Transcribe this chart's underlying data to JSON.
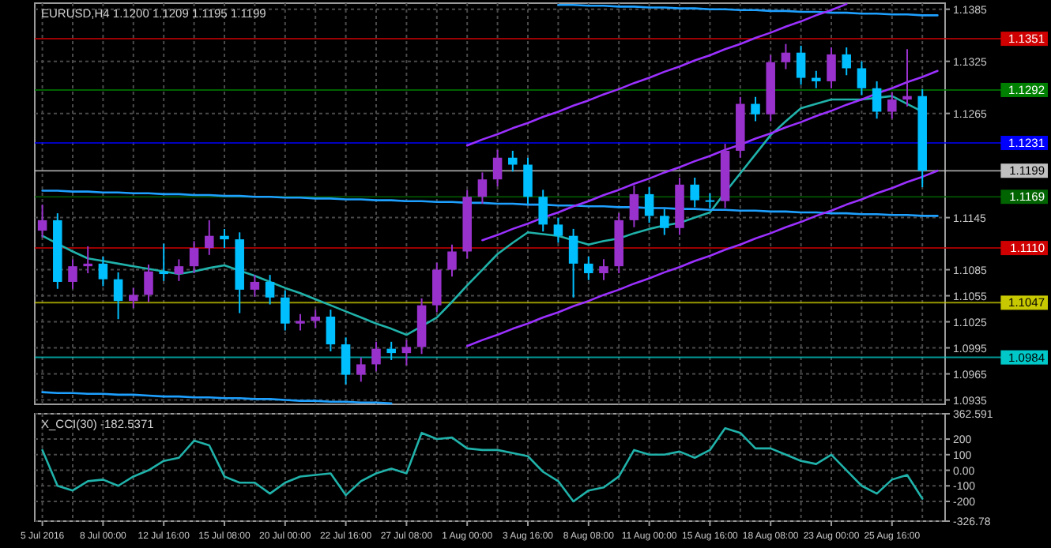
{
  "chart_data": [
    {
      "type": "candlestick",
      "title": "EURUSD,H4  1.1200 1.1209 1.1195 1.1199",
      "categories": [
        null,
        null,
        null,
        null,
        null,
        null,
        null,
        null,
        null,
        null,
        null,
        null,
        null,
        null,
        null,
        null,
        null,
        null,
        null,
        null,
        null,
        null,
        null,
        null,
        null,
        null,
        null,
        null,
        null,
        null,
        null,
        null,
        null,
        null,
        null,
        null,
        null,
        null,
        null,
        null,
        null,
        null,
        null,
        null,
        null,
        null,
        null,
        null,
        null,
        null,
        null,
        null,
        null,
        null,
        null,
        null,
        null,
        null,
        null,
        null
      ],
      "ohlc": [
        [
          1.113,
          1.116,
          1.1122,
          1.1142
        ],
        [
          1.1142,
          1.115,
          1.1063,
          1.1071
        ],
        [
          1.1071,
          1.1097,
          1.1063,
          1.1089
        ],
        [
          1.1089,
          1.1112,
          1.1081,
          1.1092
        ],
        [
          1.1092,
          1.11,
          1.1066,
          1.1074
        ],
        [
          1.1074,
          1.1082,
          1.1028,
          1.1049
        ],
        [
          1.1049,
          1.1064,
          1.1041,
          1.1056
        ],
        [
          1.1056,
          1.1091,
          1.1048,
          1.1083
        ],
        [
          1.1083,
          1.1115,
          1.1072,
          1.108
        ],
        [
          1.108,
          1.1097,
          1.1072,
          1.1089
        ],
        [
          1.1089,
          1.1118,
          1.1081,
          1.111
        ],
        [
          1.111,
          1.1142,
          1.1102,
          1.1124
        ],
        [
          1.1124,
          1.1132,
          1.111,
          1.112
        ],
        [
          1.112,
          1.1128,
          1.1035,
          1.1062
        ],
        [
          1.1062,
          1.1079,
          1.1054,
          1.1071
        ],
        [
          1.1071,
          1.1079,
          1.1045,
          1.1053
        ],
        [
          1.1053,
          1.1061,
          1.1015,
          1.1023
        ],
        [
          1.1023,
          1.1034,
          1.1015,
          1.1026
        ],
        [
          1.1026,
          1.1039,
          1.1018,
          1.1031
        ],
        [
          1.1031,
          1.1039,
          1.0991,
          1.0999
        ],
        [
          1.0999,
          1.1007,
          1.0953,
          1.0964
        ],
        [
          1.0964,
          1.0984,
          1.0956,
          1.0976
        ],
        [
          1.0976,
          1.1002,
          1.0968,
          1.0994
        ],
        [
          1.0994,
          1.1002,
          1.0981,
          1.0989
        ],
        [
          1.0989,
          1.1004,
          1.0975,
          1.0996
        ],
        [
          1.0996,
          1.1052,
          1.0988,
          1.1044
        ],
        [
          1.1044,
          1.1093,
          1.1036,
          1.1085
        ],
        [
          1.1085,
          1.1114,
          1.1077,
          1.1106
        ],
        [
          1.1106,
          1.1177,
          1.1098,
          1.1169
        ],
        [
          1.1169,
          1.1197,
          1.1161,
          1.1189
        ],
        [
          1.1189,
          1.1223,
          1.1181,
          1.1214
        ],
        [
          1.1214,
          1.1222,
          1.1198,
          1.1206
        ],
        [
          1.1206,
          1.1214,
          1.1161,
          1.1169
        ],
        [
          1.1169,
          1.1177,
          1.1129,
          1.1137
        ],
        [
          1.1137,
          1.1145,
          1.1116,
          1.1124
        ],
        [
          1.1124,
          1.1132,
          1.1053,
          1.1092
        ],
        [
          1.1092,
          1.11,
          1.1073,
          1.1081
        ],
        [
          1.1081,
          1.1097,
          1.1073,
          1.1089
        ],
        [
          1.1089,
          1.115,
          1.1081,
          1.1142
        ],
        [
          1.1142,
          1.1182,
          1.1134,
          1.1172
        ],
        [
          1.1172,
          1.118,
          1.1139,
          1.1147
        ],
        [
          1.1147,
          1.1155,
          1.1125,
          1.1133
        ],
        [
          1.1133,
          1.1191,
          1.1125,
          1.1183
        ],
        [
          1.1183,
          1.1191,
          1.1157,
          1.1165
        ],
        [
          1.1165,
          1.1173,
          1.1156,
          1.1164
        ],
        [
          1.1164,
          1.123,
          1.1156,
          1.1222
        ],
        [
          1.1222,
          1.1284,
          1.1214,
          1.1276
        ],
        [
          1.1276,
          1.1284,
          1.1256,
          1.1264
        ],
        [
          1.1264,
          1.1332,
          1.1256,
          1.1324
        ],
        [
          1.1324,
          1.1345,
          1.1316,
          1.1335
        ],
        [
          1.1335,
          1.1343,
          1.1298,
          1.1306
        ],
        [
          1.1306,
          1.1314,
          1.1294,
          1.1302
        ],
        [
          1.1302,
          1.1341,
          1.1294,
          1.1333
        ],
        [
          1.1333,
          1.1341,
          1.1309,
          1.1317
        ],
        [
          1.1317,
          1.1325,
          1.1286,
          1.1294
        ],
        [
          1.1294,
          1.1302,
          1.1259,
          1.1267
        ],
        [
          1.1267,
          1.1289,
          1.1259,
          1.1281
        ],
        [
          1.1281,
          1.1339,
          1.1273,
          1.1285
        ],
        [
          1.1285,
          1.1293,
          1.118,
          1.1199
        ],
        null
      ],
      "colors": [
        "#9932cc",
        "#00bfff",
        "#9932cc",
        "#9932cc",
        "#00bfff",
        "#00bfff",
        "#9932cc",
        "#9932cc",
        "#00bfff",
        "#9932cc",
        "#9932cc",
        "#9932cc",
        "#00bfff",
        "#00bfff",
        "#9932cc",
        "#00bfff",
        "#00bfff",
        "#9932cc",
        "#9932cc",
        "#00bfff",
        "#00bfff",
        "#9932cc",
        "#9932cc",
        "#00bfff",
        "#9932cc",
        "#9932cc",
        "#9932cc",
        "#9932cc",
        "#9932cc",
        "#9932cc",
        "#9932cc",
        "#00bfff",
        "#00bfff",
        "#00bfff",
        "#00bfff",
        "#00bfff",
        "#00bfff",
        "#9932cc",
        "#9932cc",
        "#9932cc",
        "#00bfff",
        "#00bfff",
        "#9932cc",
        "#00bfff",
        "#00bfff",
        "#9932cc",
        "#9932cc",
        "#00bfff",
        "#9932cc",
        "#9932cc",
        "#00bfff",
        "#00bfff",
        "#9932cc",
        "#00bfff",
        "#00bfff",
        "#00bfff",
        "#9932cc",
        "#9932cc",
        "#00bfff",
        null
      ],
      "series": [
        {
          "type": "line",
          "color": "#20b2aa",
          "values": [
            1.1124,
            1.1115,
            1.1106,
            1.1098,
            1.1095,
            1.1092,
            1.1089,
            1.1086,
            1.1083,
            1.108,
            1.1083,
            1.1087,
            1.109,
            1.1084,
            1.1078,
            1.1071,
            1.1064,
            1.1058,
            1.1051,
            1.1044,
            1.1037,
            1.103,
            1.1023,
            1.1017,
            1.101,
            1.102,
            1.103,
            1.1048,
            1.1067,
            1.1085,
            1.1103,
            1.1116,
            1.1128,
            1.1126,
            1.1124,
            1.1119,
            1.1114,
            1.1118,
            1.1121,
            1.1127,
            1.1132,
            1.1136,
            1.1139,
            1.1145,
            1.1151,
            1.1174,
            1.1196,
            1.1218,
            1.124,
            1.1256,
            1.1271,
            1.1276,
            1.1281,
            1.1281,
            1.1281,
            1.1283,
            1.1285,
            1.1276,
            1.1267,
            null
          ]
        },
        {
          "type": "line",
          "color": "#1ea0ff",
          "values": [
            null,
            null,
            null,
            null,
            null,
            null,
            null,
            null,
            null,
            null,
            null,
            null,
            null,
            null,
            null,
            null,
            null,
            null,
            null,
            null,
            null,
            null,
            null,
            null,
            null,
            null,
            null,
            null,
            null,
            null,
            null,
            null,
            null,
            null,
            1.139,
            1.139,
            1.1389,
            1.1389,
            1.1388,
            1.1388,
            1.1387,
            1.1387,
            1.1386,
            1.1386,
            1.1385,
            1.1385,
            1.1384,
            1.1384,
            1.1383,
            1.1383,
            1.1382,
            1.1382,
            1.1381,
            1.1381,
            1.138,
            1.138,
            1.1379,
            1.1379,
            1.1378,
            1.1378
          ]
        },
        {
          "type": "line",
          "color": "#1ea0ff",
          "values": [
            1.1176,
            1.1176,
            1.1175,
            1.1175,
            1.1174,
            1.1174,
            1.1173,
            1.1173,
            1.1172,
            1.1172,
            1.1171,
            1.1171,
            1.117,
            1.117,
            1.1169,
            1.1169,
            1.1168,
            1.1168,
            1.1167,
            1.1167,
            1.1166,
            1.1166,
            1.1165,
            1.1165,
            1.1164,
            1.1164,
            1.1163,
            1.1163,
            1.1162,
            1.1162,
            1.1161,
            1.1161,
            1.116,
            1.116,
            1.1159,
            1.1159,
            1.1158,
            1.1158,
            1.1157,
            1.1157,
            1.1156,
            1.1156,
            1.1155,
            1.1155,
            1.1154,
            1.1154,
            1.1153,
            1.1153,
            1.1152,
            1.1152,
            1.1151,
            1.1151,
            1.115,
            1.115,
            1.1149,
            1.1149,
            1.1148,
            1.1148,
            1.1147,
            1.1147
          ]
        },
        {
          "type": "line",
          "color": "#1ea0ff",
          "values": [
            1.0944,
            1.0943,
            1.0943,
            1.0942,
            1.0942,
            1.0941,
            1.0941,
            1.094,
            1.0939,
            1.0939,
            1.0938,
            1.0938,
            1.0937,
            1.0937,
            1.0936,
            1.0936,
            1.0935,
            1.0934,
            1.0934,
            1.0933,
            1.0933,
            1.0932,
            1.0932,
            1.0931,
            null,
            null,
            null,
            null,
            null,
            null,
            null,
            null,
            null,
            null,
            null,
            null,
            null,
            null,
            null,
            null,
            null,
            null,
            null,
            null,
            null,
            null,
            null,
            null,
            null,
            null,
            null,
            null,
            null,
            null,
            null,
            null,
            null,
            null,
            null,
            null
          ]
        },
        {
          "type": "line",
          "color": "#9b30ff",
          "values": [
            null,
            null,
            null,
            null,
            null,
            null,
            null,
            null,
            null,
            null,
            null,
            null,
            null,
            null,
            null,
            null,
            null,
            null,
            null,
            null,
            null,
            null,
            null,
            null,
            null,
            null,
            null,
            null,
            1.1228,
            1.1235,
            1.1241,
            1.1248,
            1.1254,
            1.1261,
            1.1267,
            1.1274,
            1.128,
            1.1287,
            1.1293,
            1.13,
            1.1306,
            1.1313,
            1.1319,
            1.1326,
            1.1332,
            1.1339,
            1.1345,
            1.1352,
            1.1358,
            1.1365,
            1.1371,
            1.1378,
            1.1384,
            1.1391,
            null,
            null,
            null,
            null,
            null,
            null
          ]
        },
        {
          "type": "line",
          "color": "#9b30ff",
          "values": [
            null,
            null,
            null,
            null,
            null,
            null,
            null,
            null,
            null,
            null,
            null,
            null,
            null,
            null,
            null,
            null,
            null,
            null,
            null,
            null,
            null,
            null,
            null,
            null,
            null,
            null,
            null,
            null,
            null,
            1.1119,
            1.1125,
            1.1132,
            1.1138,
            1.1145,
            1.1151,
            1.1158,
            1.1164,
            1.1171,
            1.1177,
            1.1184,
            1.119,
            1.1197,
            1.1203,
            1.121,
            1.1216,
            1.1223,
            1.1229,
            1.1236,
            1.1242,
            1.1249,
            1.1255,
            1.1262,
            1.1268,
            1.1275,
            1.1281,
            1.1288,
            1.1294,
            1.1301,
            1.1307,
            1.1314
          ]
        },
        {
          "type": "line",
          "color": "#9b30ff",
          "values": [
            null,
            null,
            null,
            null,
            null,
            null,
            null,
            null,
            null,
            null,
            null,
            null,
            null,
            null,
            null,
            null,
            null,
            null,
            null,
            null,
            null,
            null,
            null,
            null,
            null,
            null,
            null,
            null,
            1.0997,
            1.1004,
            1.101,
            1.1017,
            1.1023,
            1.103,
            1.1036,
            1.1043,
            1.1049,
            1.1056,
            1.1062,
            1.1069,
            1.1075,
            1.1082,
            1.1088,
            1.1095,
            1.1101,
            1.1108,
            1.1114,
            1.1121,
            1.1127,
            1.1134,
            1.114,
            1.1147,
            1.1153,
            1.116,
            1.1166,
            1.1173,
            1.1179,
            1.1186,
            1.1192,
            1.1199
          ]
        }
      ],
      "ylim": [
        1.093,
        1.1392
      ],
      "yticks": [
        1.0935,
        1.0965,
        1.0995,
        1.1025,
        1.1055,
        1.1085,
        1.1145,
        1.1265,
        1.1325,
        1.1385
      ],
      "ref_lines": [
        {
          "axis": "y",
          "value": 1.1351,
          "label": "1.1351",
          "color": "#d00000"
        },
        {
          "axis": "y",
          "value": 1.1292,
          "label": "1.1292",
          "color": "#008000"
        },
        {
          "axis": "y",
          "value": 1.1231,
          "label": "1.1231",
          "color": "#0000ff"
        },
        {
          "axis": "y",
          "value": 1.1199,
          "label": "1.1199",
          "color": "#c0c0c0"
        },
        {
          "axis": "y",
          "value": 1.1169,
          "label": "1.1169",
          "color": "#006400"
        },
        {
          "axis": "y",
          "value": 1.111,
          "label": "1.1110",
          "color": "#d00000"
        },
        {
          "axis": "y",
          "value": 1.1047,
          "label": "1.1047",
          "color": "#c8c800"
        },
        {
          "axis": "y",
          "value": 1.0984,
          "label": "1.0984",
          "color": "#00c8c8"
        }
      ],
      "grid": true,
      "tick_labels": "y",
      "marker": "none"
    },
    {
      "type": "line",
      "title": "X_CCI(30) -182.5371",
      "categories": [
        "5 Jul 2016",
        null,
        null,
        null,
        "8 Jul 00:00",
        null,
        null,
        null,
        "12 Jul 16:00",
        null,
        null,
        null,
        "15 Jul 08:00",
        null,
        null,
        null,
        "20 Jul 00:00",
        null,
        null,
        null,
        "22 Jul 16:00",
        null,
        null,
        null,
        "27 Jul 08:00",
        null,
        null,
        null,
        "1 Aug 00:00",
        null,
        null,
        null,
        "3 Aug 16:00",
        null,
        null,
        null,
        "8 Aug 08:00",
        null,
        null,
        null,
        "11 Aug 00:00",
        null,
        null,
        null,
        "15 Aug 16:00",
        null,
        null,
        null,
        "18 Aug 08:00",
        null,
        null,
        null,
        "23 Aug 00:00",
        null,
        null,
        null,
        "25 Aug 16:00",
        null,
        null,
        null
      ],
      "series": [
        {
          "color": "#20b2aa",
          "values": [
            130,
            -100,
            -130,
            -70,
            -60,
            -100,
            -40,
            0,
            60,
            80,
            190,
            160,
            -40,
            -80,
            -80,
            -150,
            -80,
            -40,
            -30,
            -20,
            -160,
            -70,
            -20,
            10,
            -20,
            240,
            200,
            210,
            140,
            130,
            130,
            110,
            90,
            -10,
            -70,
            -200,
            -130,
            -110,
            -40,
            130,
            100,
            100,
            120,
            80,
            130,
            270,
            240,
            140,
            140,
            100,
            60,
            40,
            100,
            0,
            -100,
            -150,
            -60,
            -30,
            -182.5371,
            null
          ]
        }
      ],
      "ylim": [
        -326.78,
        362.591
      ],
      "yticks": [
        {
          "value": 362.591,
          "label": "362.591"
        },
        200,
        100,
        {
          "value": 0,
          "label": "0.00"
        },
        -100,
        -200,
        {
          "value": -326.78,
          "label": "-326.78"
        }
      ],
      "grid": true,
      "marker": "none"
    }
  ]
}
